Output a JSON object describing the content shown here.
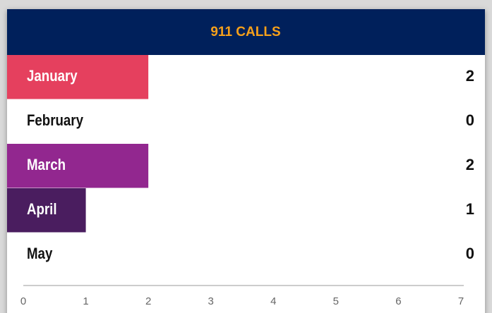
{
  "chart_data": {
    "type": "bar",
    "orientation": "horizontal",
    "title": "911 CALLS",
    "categories": [
      "January",
      "February",
      "March",
      "April",
      "May"
    ],
    "values": [
      2,
      0,
      2,
      1,
      0
    ],
    "colors": [
      "#e5405e",
      null,
      "#92278f",
      "#4a1d5f",
      null
    ],
    "xlim": [
      0,
      7
    ],
    "xticks": [
      0,
      1,
      2,
      3,
      4,
      5,
      6,
      7
    ]
  }
}
